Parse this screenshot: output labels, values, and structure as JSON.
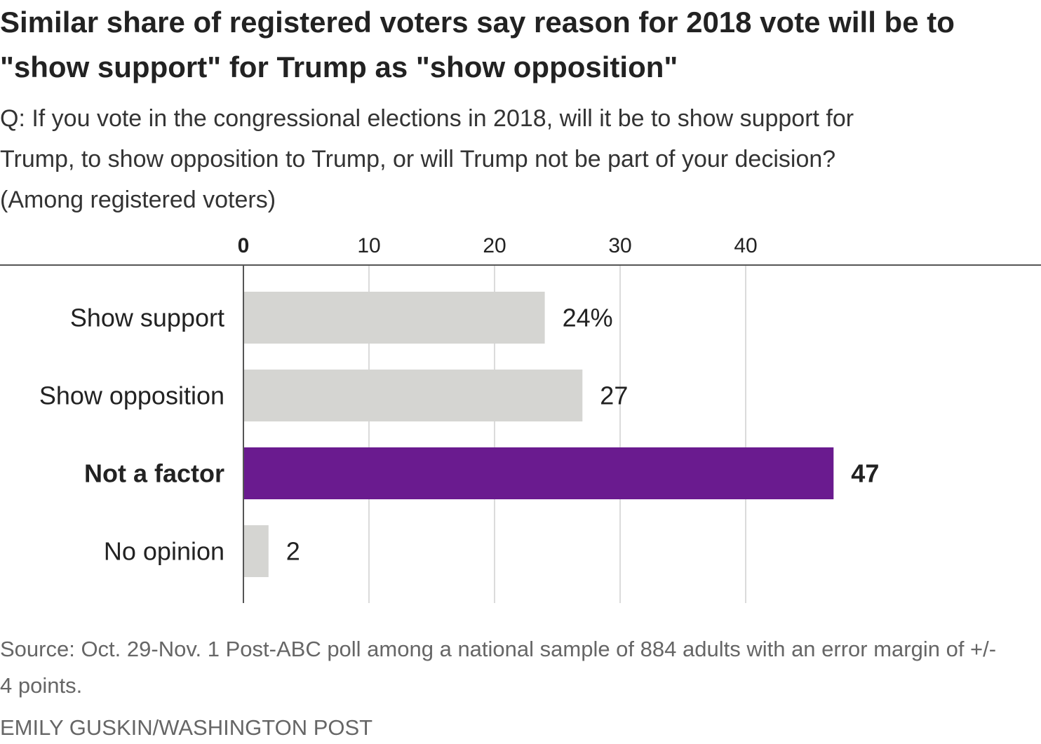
{
  "title": "Similar share of registered voters say reason for 2018 vote will be to \"show support\" for Trump as \"show opposition\"",
  "subtitle_lines": [
    "Q: If you vote in the congressional elections in 2018, will it be to show support for",
    "Trump, to show opposition to Trump, or will Trump not be part of your decision?",
    "(Among registered voters)"
  ],
  "source": "Source: Oct. 29-Nov. 1 Post-ABC poll among a national sample of 884 adults with an error margin of +/- 4 points.",
  "credit": "EMILY GUSKIN/WASHINGTON POST",
  "colors": {
    "bar_default": "#d5d5d2",
    "bar_highlight": "#6a1b8f",
    "grid": "#cfcfcf",
    "axis": "#555555",
    "text": "#222222"
  },
  "chart_data": {
    "type": "bar",
    "orientation": "horizontal",
    "categories": [
      "Show support",
      "Show opposition",
      "Not a factor",
      "No opinion"
    ],
    "values": [
      24,
      27,
      47,
      2
    ],
    "value_labels": [
      "24%",
      "27",
      "47",
      "2"
    ],
    "highlight": "Not a factor",
    "xticks": [
      0,
      10,
      20,
      30,
      40
    ],
    "xlim": [
      0,
      47
    ],
    "grid": true,
    "tick_position": "top"
  }
}
